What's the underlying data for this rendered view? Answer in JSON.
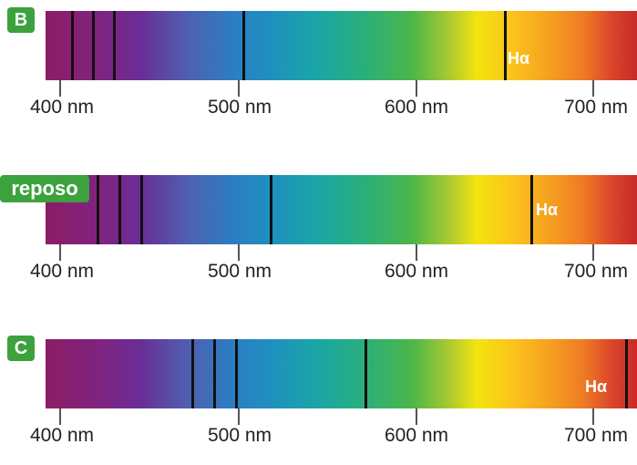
{
  "spectra": [
    {
      "badge": "B",
      "line_marker": "Hα",
      "tick_labels": [
        "400 nm",
        "500 nm",
        "600 nm",
        "700 nm"
      ]
    },
    {
      "badge": "reposo",
      "line_marker": "Hα",
      "tick_labels": [
        "400 nm",
        "500 nm",
        "600 nm",
        "700 nm"
      ]
    },
    {
      "badge": "C",
      "line_marker": "Hα",
      "tick_labels": [
        "400 nm",
        "500 nm",
        "600 nm",
        "700 nm"
      ]
    }
  ],
  "colors": {
    "badge_green": "#3ba23e",
    "line_black": "#111111"
  }
}
